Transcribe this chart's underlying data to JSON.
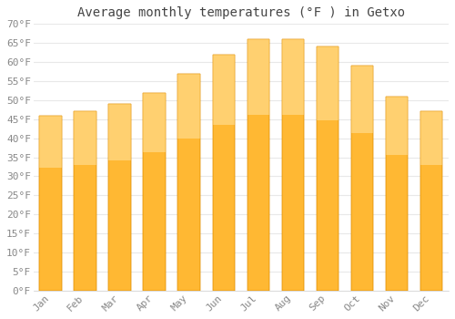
{
  "title": "Average monthly temperatures (°F ) in Getxo",
  "months": [
    "Jan",
    "Feb",
    "Mar",
    "Apr",
    "May",
    "Jun",
    "Jul",
    "Aug",
    "Sep",
    "Oct",
    "Nov",
    "Dec"
  ],
  "values": [
    46,
    47,
    49,
    52,
    57,
    62,
    66,
    66,
    64,
    59,
    51,
    47
  ],
  "bar_color_top": "#FFB833",
  "bar_color_bottom": "#FFA500",
  "bar_edge_color": "#E09000",
  "ylim": [
    0,
    70
  ],
  "yticks": [
    0,
    5,
    10,
    15,
    20,
    25,
    30,
    35,
    40,
    45,
    50,
    55,
    60,
    65,
    70
  ],
  "background_color": "#ffffff",
  "plot_bg_color": "#ffffff",
  "grid_color": "#e8e8e8",
  "title_fontsize": 10,
  "tick_fontsize": 8,
  "title_color": "#444444",
  "tick_color": "#888888"
}
